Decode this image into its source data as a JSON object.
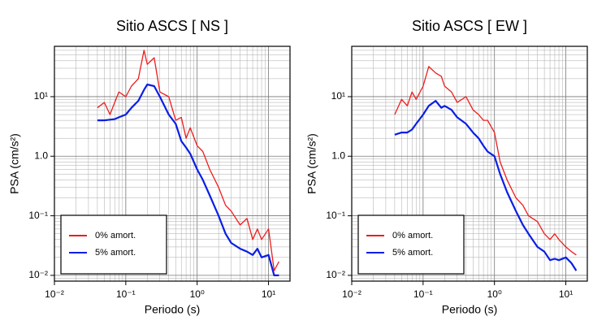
{
  "chart_data": [
    {
      "type": "line",
      "title": "Sitio ASCS [ NS ]",
      "xlabel": "Periodo (s)",
      "ylabel": "PSA (cm/s²)",
      "log_x": true,
      "log_y": true,
      "grid": true,
      "legend": "lower left",
      "xlim": [
        0.01,
        20
      ],
      "ylim": [
        0.008,
        70
      ],
      "xticks": [
        {
          "value": 0.01,
          "label": "10⁻²"
        },
        {
          "value": 0.1,
          "label": "10⁻¹"
        },
        {
          "value": 1,
          "label": "10⁰"
        },
        {
          "value": 10,
          "label": "10¹"
        }
      ],
      "yticks": [
        {
          "value": 0.01,
          "label": "10⁻²"
        },
        {
          "value": 0.1,
          "label": "10⁻¹"
        },
        {
          "value": 1,
          "label": "1.0"
        },
        {
          "value": 10,
          "label": "10¹"
        }
      ],
      "x": [
        0.04,
        0.05,
        0.06,
        0.07,
        0.08,
        0.1,
        0.12,
        0.15,
        0.18,
        0.2,
        0.25,
        0.3,
        0.4,
        0.5,
        0.6,
        0.7,
        0.8,
        1.0,
        1.2,
        1.5,
        2,
        2.5,
        3,
        4,
        5,
        6,
        7,
        8,
        10,
        12,
        14
      ],
      "series": [
        {
          "name": "0% amort.",
          "color": "#ee1c1c",
          "values": [
            6.5,
            8,
            5,
            8,
            12,
            10,
            15,
            20,
            60,
            35,
            45,
            12,
            10,
            4,
            4.5,
            2,
            3,
            1.5,
            1.2,
            0.6,
            0.3,
            0.15,
            0.12,
            0.07,
            0.09,
            0.04,
            0.06,
            0.04,
            0.06,
            0.012,
            0.017
          ]
        },
        {
          "name": "5% amort.",
          "color": "#0a1ee6",
          "values": [
            4,
            4,
            4.1,
            4.2,
            4.5,
            5,
            6.5,
            8.5,
            13,
            16,
            15,
            10,
            5,
            3.5,
            1.8,
            1.4,
            1.1,
            0.6,
            0.4,
            0.22,
            0.1,
            0.05,
            0.035,
            0.028,
            0.025,
            0.022,
            0.028,
            0.02,
            0.022,
            0.01,
            0.01
          ]
        }
      ]
    },
    {
      "type": "line",
      "title": "Sitio ASCS [ EW ]",
      "xlabel": "Periodo (s)",
      "ylabel": "PSA (cm/s²)",
      "log_x": true,
      "log_y": true,
      "grid": true,
      "legend": "lower left",
      "xlim": [
        0.01,
        20
      ],
      "ylim": [
        0.008,
        70
      ],
      "xticks": [
        {
          "value": 0.01,
          "label": "10⁻²"
        },
        {
          "value": 0.1,
          "label": "10⁻¹"
        },
        {
          "value": 1,
          "label": "10⁰"
        },
        {
          "value": 10,
          "label": "10¹"
        }
      ],
      "yticks": [
        {
          "value": 0.01,
          "label": "10⁻²"
        },
        {
          "value": 0.1,
          "label": "10⁻¹"
        },
        {
          "value": 1,
          "label": "1.0"
        },
        {
          "value": 10,
          "label": "10¹"
        }
      ],
      "x": [
        0.04,
        0.05,
        0.06,
        0.07,
        0.08,
        0.1,
        0.12,
        0.15,
        0.18,
        0.2,
        0.25,
        0.3,
        0.4,
        0.5,
        0.6,
        0.7,
        0.8,
        1.0,
        1.2,
        1.5,
        2,
        2.5,
        3,
        4,
        5,
        6,
        7,
        8,
        10,
        12,
        14
      ],
      "series": [
        {
          "name": "0% amort.",
          "color": "#ee1c1c",
          "values": [
            5,
            9,
            7,
            12,
            9,
            15,
            32,
            25,
            22,
            15,
            12,
            8,
            10,
            6,
            5,
            4,
            4,
            2.5,
            0.8,
            0.4,
            0.2,
            0.15,
            0.1,
            0.08,
            0.05,
            0.04,
            0.05,
            0.04,
            0.03,
            0.025,
            0.022
          ]
        },
        {
          "name": "5% amort.",
          "color": "#0a1ee6",
          "values": [
            2.3,
            2.5,
            2.5,
            2.8,
            3.5,
            5,
            7,
            8.5,
            6.5,
            7,
            6,
            4.5,
            3.5,
            2.5,
            2,
            1.5,
            1.2,
            1.0,
            0.5,
            0.25,
            0.12,
            0.07,
            0.05,
            0.03,
            0.025,
            0.018,
            0.019,
            0.018,
            0.02,
            0.016,
            0.012
          ]
        }
      ]
    }
  ]
}
